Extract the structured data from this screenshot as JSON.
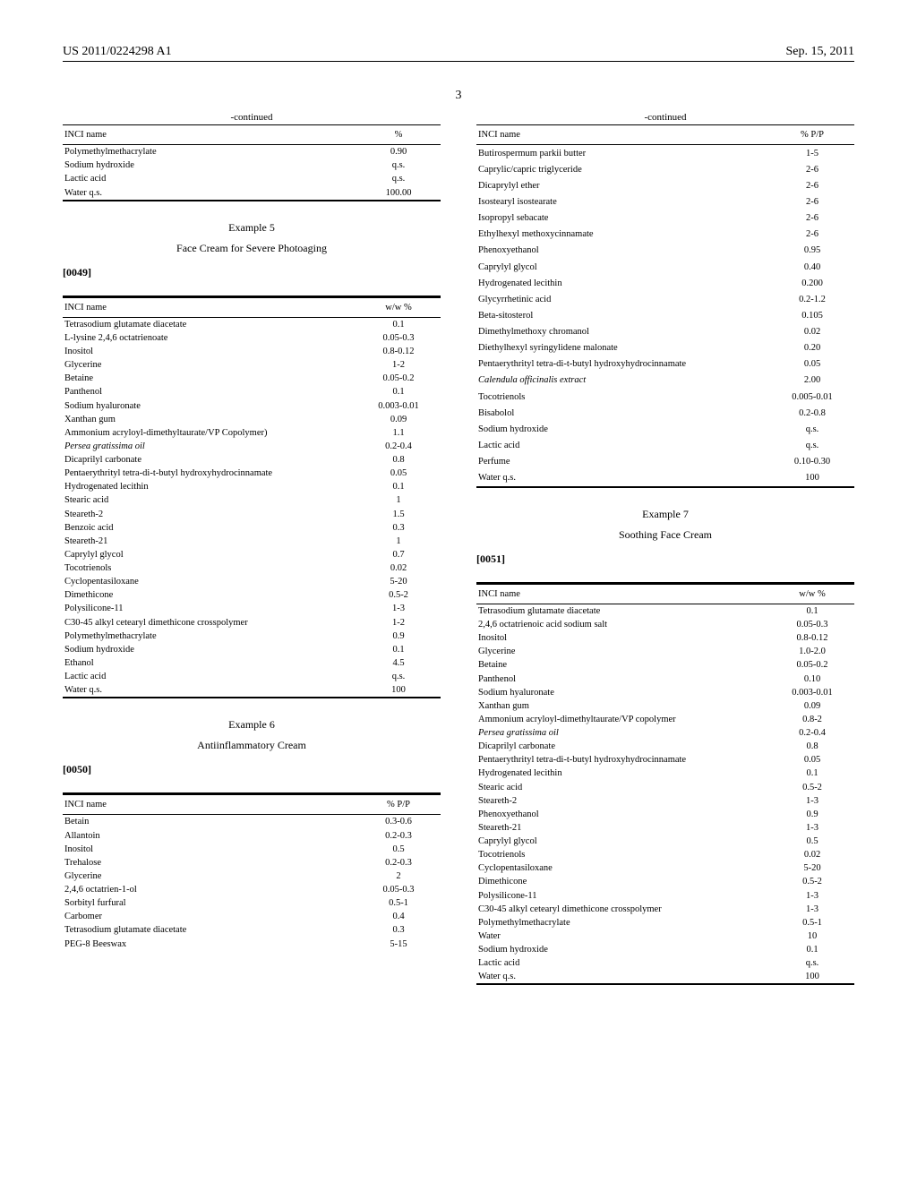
{
  "header": {
    "pub_no": "US 2011/0224298 A1",
    "date": "Sep. 15, 2011"
  },
  "page_number": "3",
  "continued_label": "-continued",
  "col_inci": "INCI name",
  "col_pct": "%",
  "col_ww": "w/w %",
  "col_pp": "% P/P",
  "left": {
    "table_cont": [
      {
        "name": "Polymethylmethacrylate",
        "val": "0.90"
      },
      {
        "name": "Sodium hydroxide",
        "val": "q.s."
      },
      {
        "name": "Lactic acid",
        "val": "q.s."
      },
      {
        "name": "Water q.s.",
        "val": "100.00"
      }
    ],
    "ex5": {
      "heading": "Example 5",
      "title": "Face Cream for Severe Photoaging",
      "para": "[0049]",
      "rows": [
        {
          "name": "Tetrasodium glutamate diacetate",
          "val": "0.1"
        },
        {
          "name": "L-lysine 2,4,6 octatrienoate",
          "val": "0.05-0.3"
        },
        {
          "name": "Inositol",
          "val": "0.8-0.12"
        },
        {
          "name": "Glycerine",
          "val": "1-2"
        },
        {
          "name": "Betaine",
          "val": "0.05-0.2"
        },
        {
          "name": "Panthenol",
          "val": "0.1"
        },
        {
          "name": "Sodium hyaluronate",
          "val": "0.003-0.01"
        },
        {
          "name": "Xanthan gum",
          "val": "0.09"
        },
        {
          "name": "Ammonium acryloyl-dimethyltaurate/VP Copolymer)",
          "val": "1.1"
        },
        {
          "name": "Persea gratissima oil",
          "val": "0.2-0.4",
          "italic": true
        },
        {
          "name": "Dicaprilyl carbonate",
          "val": "0.8"
        },
        {
          "name": "Pentaerythrityl tetra-di-t-butyl hydroxyhydrocinnamate",
          "val": "0.05"
        },
        {
          "name": "Hydrogenated lecithin",
          "val": "0.1"
        },
        {
          "name": "Stearic acid",
          "val": "1"
        },
        {
          "name": "Steareth-2",
          "val": "1.5"
        },
        {
          "name": "Benzoic acid",
          "val": "0.3"
        },
        {
          "name": "Steareth-21",
          "val": "1"
        },
        {
          "name": "Caprylyl glycol",
          "val": "0.7"
        },
        {
          "name": "Tocotrienols",
          "val": "0.02"
        },
        {
          "name": "Cyclopentasiloxane",
          "val": "5-20"
        },
        {
          "name": "Dimethicone",
          "val": "0.5-2"
        },
        {
          "name": "Polysilicone-11",
          "val": "1-3"
        },
        {
          "name": "C30-45 alkyl cetearyl dimethicone crosspolymer",
          "val": "1-2"
        },
        {
          "name": "Polymethylmethacrylate",
          "val": "0.9"
        },
        {
          "name": "Sodium hydroxide",
          "val": "0.1"
        },
        {
          "name": "Ethanol",
          "val": "4.5"
        },
        {
          "name": "Lactic acid",
          "val": "q.s."
        },
        {
          "name": "Water q.s.",
          "val": "100"
        }
      ]
    },
    "ex6": {
      "heading": "Example 6",
      "title": "Antiinflammatory Cream",
      "para": "[0050]",
      "rows": [
        {
          "name": "Betain",
          "val": "0.3-0.6"
        },
        {
          "name": "Allantoin",
          "val": "0.2-0.3"
        },
        {
          "name": "Inositol",
          "val": "0.5"
        },
        {
          "name": "Trehalose",
          "val": "0.2-0.3"
        },
        {
          "name": "Glycerine",
          "val": "2"
        },
        {
          "name": "2,4,6 octatrien-1-ol",
          "val": "0.05-0.3"
        },
        {
          "name": "Sorbityl furfural",
          "val": "0.5-1"
        },
        {
          "name": "Carbomer",
          "val": "0.4"
        },
        {
          "name": "Tetrasodium glutamate diacetate",
          "val": "0.3"
        },
        {
          "name": "PEG-8 Beeswax",
          "val": "5-15"
        }
      ]
    }
  },
  "right": {
    "table_cont": [
      {
        "name": "Butirospermum parkii butter",
        "val": "1-5"
      },
      {
        "name": "Caprylic/capric triglyceride",
        "val": "2-6"
      },
      {
        "name": "Dicaprylyl ether",
        "val": "2-6"
      },
      {
        "name": "Isostearyl isostearate",
        "val": "2-6"
      },
      {
        "name": "Isopropyl sebacate",
        "val": "2-6"
      },
      {
        "name": "Ethylhexyl methoxycinnamate",
        "val": "2-6"
      },
      {
        "name": "Phenoxyethanol",
        "val": "0.95"
      },
      {
        "name": "Caprylyl glycol",
        "val": "0.40"
      },
      {
        "name": "Hydrogenated lecithin",
        "val": "0.200"
      },
      {
        "name": "Glycyrrhetinic acid",
        "val": "0.2-1.2"
      },
      {
        "name": "Beta-sitosterol",
        "val": "0.105"
      },
      {
        "name": "Dimethylmethoxy chromanol",
        "val": "0.02"
      },
      {
        "name": "Diethylhexyl syringylidene malonate",
        "val": "0.20"
      },
      {
        "name": "Pentaerythrityl tetra-di-t-butyl hydroxyhydrocinnamate",
        "val": "0.05"
      },
      {
        "name": "Calendula officinalis extract",
        "val": "2.00",
        "italic": true
      },
      {
        "name": "Tocotrienols",
        "val": "0.005-0.01"
      },
      {
        "name": "Bisabolol",
        "val": "0.2-0.8"
      },
      {
        "name": "Sodium hydroxide",
        "val": "q.s."
      },
      {
        "name": "Lactic acid",
        "val": "q.s."
      },
      {
        "name": "Perfume",
        "val": "0.10-0.30"
      },
      {
        "name": "Water q.s.",
        "val": "100"
      }
    ],
    "ex7": {
      "heading": "Example 7",
      "title": "Soothing Face Cream",
      "para": "[0051]",
      "rows": [
        {
          "name": "Tetrasodium glutamate diacetate",
          "val": "0.1"
        },
        {
          "name": "2,4,6 octatrienoic acid sodium salt",
          "val": "0.05-0.3"
        },
        {
          "name": "Inositol",
          "val": "0.8-0.12"
        },
        {
          "name": "Glycerine",
          "val": "1.0-2.0"
        },
        {
          "name": "Betaine",
          "val": "0.05-0.2"
        },
        {
          "name": "Panthenol",
          "val": "0.10"
        },
        {
          "name": "Sodium hyaluronate",
          "val": "0.003-0.01"
        },
        {
          "name": "Xanthan gum",
          "val": "0.09"
        },
        {
          "name": "Ammonium acryloyl-dimethyltaurate/VP copolymer",
          "val": "0.8-2"
        },
        {
          "name": "Persea gratissima oil",
          "val": "0.2-0.4",
          "italic": true
        },
        {
          "name": "Dicaprilyl carbonate",
          "val": "0.8"
        },
        {
          "name": "Pentaerythrityl tetra-di-t-butyl hydroxyhydrocinnamate",
          "val": "0.05"
        },
        {
          "name": "Hydrogenated lecithin",
          "val": "0.1"
        },
        {
          "name": "Stearic acid",
          "val": "0.5-2"
        },
        {
          "name": "Steareth-2",
          "val": "1-3"
        },
        {
          "name": "Phenoxyethanol",
          "val": "0.9"
        },
        {
          "name": "Steareth-21",
          "val": "1-3"
        },
        {
          "name": "Caprylyl glycol",
          "val": "0.5"
        },
        {
          "name": "Tocotrienols",
          "val": "0.02"
        },
        {
          "name": "Cyclopentasiloxane",
          "val": "5-20"
        },
        {
          "name": "Dimethicone",
          "val": "0.5-2"
        },
        {
          "name": "Polysilicone-11",
          "val": "1-3"
        },
        {
          "name": "C30-45 alkyl cetearyl dimethicone crosspolymer",
          "val": "1-3"
        },
        {
          "name": "Polymethylmethacrylate",
          "val": "0.5-1"
        },
        {
          "name": "Water",
          "val": "10"
        },
        {
          "name": "Sodium hydroxide",
          "val": "0.1"
        },
        {
          "name": "Lactic acid",
          "val": "q.s."
        },
        {
          "name": "Water q.s.",
          "val": "100"
        }
      ]
    }
  }
}
